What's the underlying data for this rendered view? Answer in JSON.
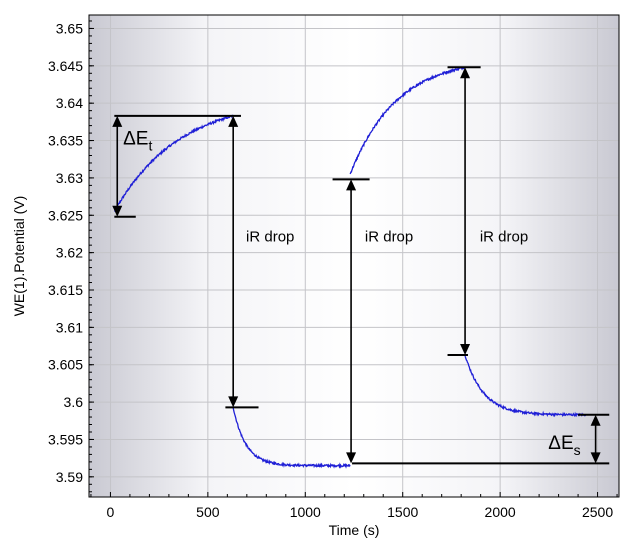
{
  "chart_data": {
    "type": "line",
    "xlabel": "Time (s)",
    "ylabel": "WE(1).Potential (V)",
    "xlim": [
      -110,
      2610
    ],
    "ylim": [
      3.5873,
      3.6518
    ],
    "x_ticks": [
      0,
      500,
      1000,
      1500,
      2000,
      2500
    ],
    "y_ticks": [
      3.59,
      3.595,
      3.6,
      3.605,
      3.61,
      3.615,
      3.62,
      3.625,
      3.63,
      3.635,
      3.64,
      3.645,
      3.65
    ],
    "x_tick_labels": [
      "0",
      "500",
      "1000",
      "1500",
      "2000",
      "2500"
    ],
    "y_tick_labels": [
      "3.59",
      "3.595",
      "3.6",
      "3.605",
      "3.61",
      "3.615",
      "3.62",
      "3.625",
      "3.63",
      "3.635",
      "3.64",
      "3.645",
      "3.65"
    ],
    "grid": true,
    "series_color": "#1f1fd6",
    "segments": [
      {
        "kind": "pulse",
        "t_start": 20,
        "t_end": 630,
        "v_start": 3.6255,
        "v_end": 3.6383,
        "tau": 330
      },
      {
        "kind": "relax",
        "t_start": 630,
        "t_end": 1230,
        "v_start": 3.5993,
        "v_end": 3.5915,
        "tau": 65
      },
      {
        "kind": "pulse",
        "t_start": 1230,
        "t_end": 1820,
        "v_start": 3.6305,
        "v_end": 3.6448,
        "tau": 240
      },
      {
        "kind": "relax",
        "t_start": 1820,
        "t_end": 2440,
        "v_start": 3.6063,
        "v_end": 3.5983,
        "tau": 95
      }
    ],
    "annotations": {
      "hlines": [
        {
          "x0": 20,
          "x1": 130,
          "y": 3.6248
        },
        {
          "x0": 20,
          "x1": 670,
          "y": 3.6383
        },
        {
          "x0": 590,
          "x1": 760,
          "y": 3.5993
        },
        {
          "x0": 1140,
          "x1": 1330,
          "y": 3.6298
        },
        {
          "x0": 1240,
          "x1": 2560,
          "y": 3.5918
        },
        {
          "x0": 1730,
          "x1": 1900,
          "y": 3.6448
        },
        {
          "x0": 1730,
          "x1": 1835,
          "y": 3.6063
        },
        {
          "x0": 2400,
          "x1": 2560,
          "y": 3.5983
        }
      ],
      "arrows": [
        {
          "x": 35,
          "y_top": 3.6383,
          "y_bottom": 3.6248
        },
        {
          "x": 630,
          "y_top": 3.6383,
          "y_bottom": 3.5993
        },
        {
          "x": 1235,
          "y_top": 3.6298,
          "y_bottom": 3.5918
        },
        {
          "x": 1820,
          "y_top": 3.6448,
          "y_bottom": 3.6063
        },
        {
          "x": 2490,
          "y_top": 3.5983,
          "y_bottom": 3.5918
        }
      ],
      "labels": [
        {
          "text": "iR drop",
          "x": 820,
          "y": 3.6215
        },
        {
          "text": "iR drop",
          "x": 1430,
          "y": 3.6215
        },
        {
          "text": "iR drop",
          "x": 2020,
          "y": 3.6215
        }
      ],
      "delta_t": {
        "base": "ΔE",
        "sub": "t",
        "x": 140,
        "y": 3.6345
      },
      "delta_s": {
        "base": "ΔE",
        "sub": "s",
        "x": 2330,
        "y": 3.5937
      }
    }
  }
}
